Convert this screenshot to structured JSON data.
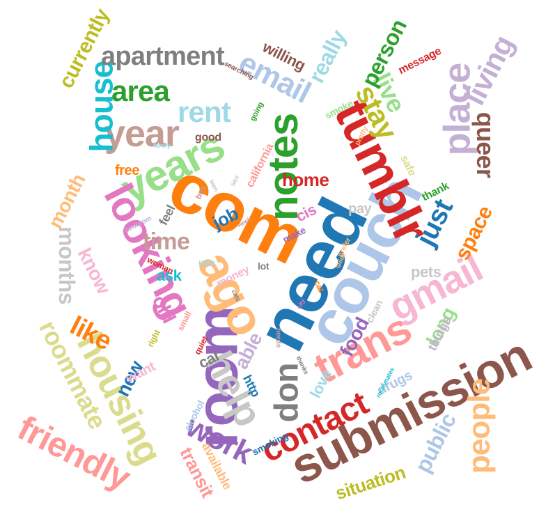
{
  "words": [
    {
      "text": "need",
      "color": "#1f77b4"
    },
    {
      "text": "couch",
      "color": "#aec7e8"
    },
    {
      "text": "com",
      "color": "#ff7f0e"
    },
    {
      "text": "room",
      "color": "#9467bd"
    },
    {
      "text": "tumblr",
      "color": "#d62728"
    },
    {
      "text": "submission",
      "color": "#8c564b"
    },
    {
      "text": "ago",
      "color": "#ffbb78"
    },
    {
      "text": "notes",
      "color": "#2ca02c"
    },
    {
      "text": "years",
      "color": "#98df8a"
    },
    {
      "text": "trans",
      "color": "#ff9896"
    },
    {
      "text": "looking",
      "color": "#e377c2"
    },
    {
      "text": "place",
      "color": "#c5b0d5"
    },
    {
      "text": "gmail",
      "color": "#f7b6d2"
    },
    {
      "text": "housing",
      "color": "#dbdb8d"
    },
    {
      "text": "year",
      "color": "#c49c94"
    },
    {
      "text": "help",
      "color": "#c7c7c7"
    },
    {
      "text": "friendly",
      "color": "#ff9896"
    },
    {
      "text": "contact",
      "color": "#d62728"
    },
    {
      "text": "people",
      "color": "#ffbb78"
    },
    {
      "text": "house",
      "color": "#17becf"
    },
    {
      "text": "area",
      "color": "#2ca02c"
    },
    {
      "text": "rent",
      "color": "#9edae5"
    },
    {
      "text": "email",
      "color": "#aec7e8"
    },
    {
      "text": "apartment",
      "color": "#7f7f7f"
    },
    {
      "text": "stay",
      "color": "#bcbd22"
    },
    {
      "text": "live",
      "color": "#98df8a"
    },
    {
      "text": "living",
      "color": "#c5b0d5"
    },
    {
      "text": "work",
      "color": "#9467bd"
    },
    {
      "text": "roommate",
      "color": "#dbdb8d"
    },
    {
      "text": "don",
      "color": "#7f7f7f"
    },
    {
      "text": "just",
      "color": "#1f77b4"
    },
    {
      "text": "currently",
      "color": "#bcbd22"
    },
    {
      "text": "like",
      "color": "#ff7f0e"
    },
    {
      "text": "time",
      "color": "#c49c94"
    },
    {
      "text": "queer",
      "color": "#8c564b"
    },
    {
      "text": "months",
      "color": "#c7c7c7"
    },
    {
      "text": "person",
      "color": "#2ca02c"
    },
    {
      "text": "really",
      "color": "#9edae5"
    },
    {
      "text": "public",
      "color": "#aec7e8"
    },
    {
      "text": "new",
      "color": "#1f77b4"
    },
    {
      "text": "know",
      "color": "#f7b6d2"
    },
    {
      "text": "old",
      "color": "#e377c2"
    },
    {
      "text": "able",
      "color": "#c5b0d5"
    },
    {
      "text": "food",
      "color": "#9467bd"
    },
    {
      "text": "long",
      "color": "#98df8a"
    },
    {
      "text": "space",
      "color": "#ff7f0e"
    },
    {
      "text": "month",
      "color": "#ffbb78"
    },
    {
      "text": "home",
      "color": "#d62728"
    },
    {
      "text": "transit",
      "color": "#ff9896"
    },
    {
      "text": "situation",
      "color": "#bcbd22"
    },
    {
      "text": "willing",
      "color": "#8c564b"
    },
    {
      "text": "job",
      "color": "#1f77b4"
    },
    {
      "text": "cis",
      "color": "#e377c2"
    },
    {
      "text": "pets",
      "color": "#c7c7c7"
    },
    {
      "text": "love",
      "color": "#9edae5"
    },
    {
      "text": "car",
      "color": "#7f7f7f"
    },
    {
      "text": "want",
      "color": "#f7b6d2"
    },
    {
      "text": "drugs",
      "color": "#aec7e8"
    },
    {
      "text": "things",
      "color": "#c5b0d5"
    },
    {
      "text": "http",
      "color": "#1f77b4"
    },
    {
      "text": "available",
      "color": "#ffbb78"
    },
    {
      "text": "free",
      "color": "#ff7f0e"
    },
    {
      "text": "pay",
      "color": "#c7c7c7"
    },
    {
      "text": "ask",
      "color": "#17becf"
    },
    {
      "text": "feel",
      "color": "#7f7f7f"
    },
    {
      "text": "good",
      "color": "#8c564b"
    },
    {
      "text": "message",
      "color": "#d62728"
    },
    {
      "text": "smoke",
      "color": "#98df8a"
    },
    {
      "text": "safe",
      "color": "#dbdb8d"
    },
    {
      "text": "thank",
      "color": "#2ca02c"
    },
    {
      "text": "california",
      "color": "#ff9896"
    },
    {
      "text": "alcohol",
      "color": "#aec7e8"
    },
    {
      "text": "smoking",
      "color": "#1f77b4"
    },
    {
      "text": "use",
      "color": "#9edae5"
    },
    {
      "text": "money",
      "color": "#f7b6d2"
    },
    {
      "text": "lot",
      "color": "#7f7f7f"
    },
    {
      "text": "make",
      "color": "#9467bd"
    },
    {
      "text": "clean",
      "color": "#c7c7c7"
    },
    {
      "text": "quiet",
      "color": "#d62728"
    },
    {
      "text": "small",
      "color": "#ff9896"
    },
    {
      "text": "right",
      "color": "#bcbd22"
    },
    {
      "text": "woman",
      "color": "#d62728"
    },
    {
      "text": "bedroom",
      "color": "#c5b0d5"
    },
    {
      "text": "family",
      "color": "#9edae5"
    },
    {
      "text": "searching",
      "color": "#8c564b"
    },
    {
      "text": "going",
      "color": "#2ca02c"
    },
    {
      "text": "pretty",
      "color": "#ffbb78"
    },
    {
      "text": "bus",
      "color": "#c49c94"
    },
    {
      "text": "sex",
      "color": "#c7c7c7"
    },
    {
      "text": "week",
      "color": "#c49c94"
    },
    {
      "text": "prefer",
      "color": "#ffbb78"
    },
    {
      "text": "cat",
      "color": "#ff7f0e"
    },
    {
      "text": "cats",
      "color": "#7f7f7f"
    },
    {
      "text": "city",
      "color": "#e377c2"
    },
    {
      "text": "needs",
      "color": "#c49c94"
    },
    {
      "text": "thanks",
      "color": "#7f7f7f"
    },
    {
      "text": "roommates",
      "color": "#17becf"
    },
    {
      "text": "teen",
      "color": "#c7c7c7"
    },
    {
      "text": "quick",
      "color": "#ffbb78"
    }
  ]
}
